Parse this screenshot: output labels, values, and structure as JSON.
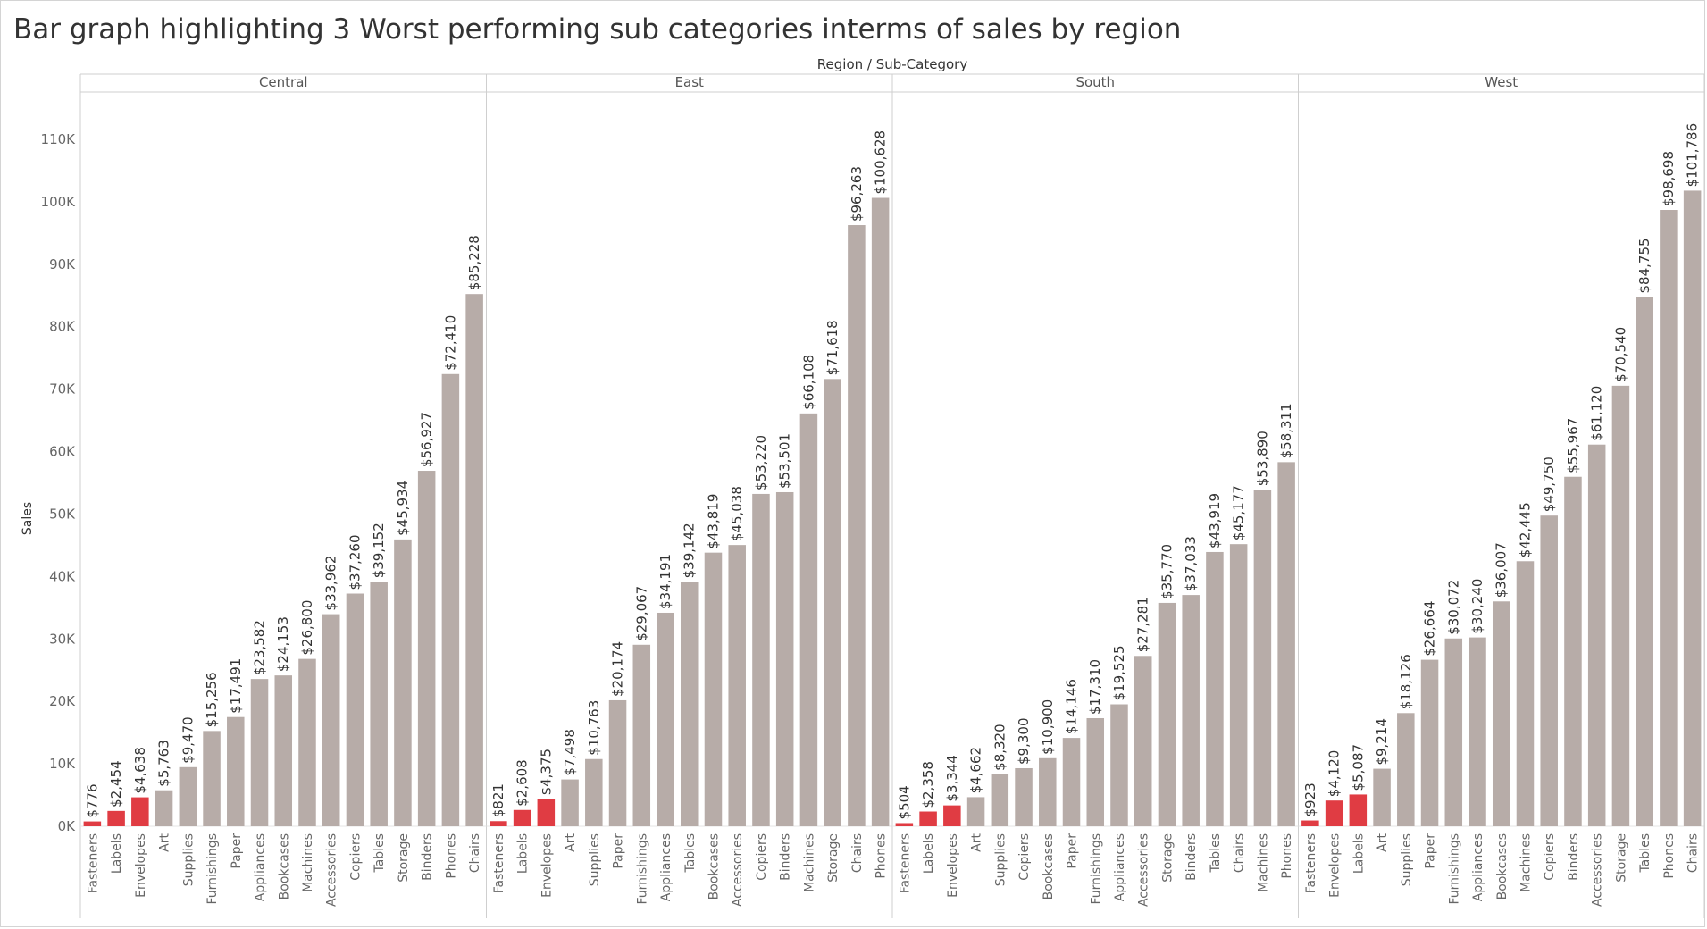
{
  "title": "Bar graph highlighting 3 Worst performing sub categories interms of sales by region",
  "chart_data": {
    "type": "bar",
    "title": "Bar graph highlighting 3 Worst performing sub categories interms of sales by region",
    "header_label": "Region / Sub-Category",
    "ylabel": "Sales",
    "ylim": [
      0,
      115000
    ],
    "yticks": [
      0,
      10000,
      20000,
      30000,
      40000,
      50000,
      60000,
      70000,
      80000,
      90000,
      100000,
      110000
    ],
    "ytick_labels": [
      "0K",
      "10K",
      "20K",
      "30K",
      "40K",
      "50K",
      "60K",
      "70K",
      "80K",
      "90K",
      "100K",
      "110K"
    ],
    "colors": {
      "highlight": "#e03c43",
      "normal": "#b7aca8"
    },
    "grid": false,
    "panels": [
      {
        "region": "Central",
        "categories": [
          "Fasteners",
          "Labels",
          "Envelopes",
          "Art",
          "Supplies",
          "Furnishings",
          "Paper",
          "Appliances",
          "Bookcases",
          "Machines",
          "Accessories",
          "Copiers",
          "Tables",
          "Storage",
          "Binders",
          "Phones",
          "Chairs"
        ],
        "values": [
          776,
          2454,
          4638,
          5763,
          9470,
          15256,
          17491,
          23582,
          24153,
          26800,
          33962,
          37260,
          39152,
          45934,
          56927,
          72410,
          85228
        ],
        "labels": [
          "$776",
          "$2,454",
          "$4,638",
          "$5,763",
          "$9,470",
          "$15,256",
          "$17,491",
          "$23,582",
          "$24,153",
          "$26,800",
          "$33,962",
          "$37,260",
          "$39,152",
          "$45,934",
          "$56,927",
          "$72,410",
          "$85,228"
        ],
        "highlighted": 3
      },
      {
        "region": "East",
        "categories": [
          "Fasteners",
          "Labels",
          "Envelopes",
          "Art",
          "Supplies",
          "Paper",
          "Furnishings",
          "Appliances",
          "Tables",
          "Bookcases",
          "Accessories",
          "Copiers",
          "Binders",
          "Machines",
          "Storage",
          "Chairs",
          "Phones"
        ],
        "values": [
          821,
          2608,
          4375,
          7498,
          10763,
          20174,
          29067,
          34191,
          39142,
          43819,
          45038,
          53220,
          53501,
          66108,
          71618,
          96263,
          100628
        ],
        "labels": [
          "$821",
          "$2,608",
          "$4,375",
          "$7,498",
          "$10,763",
          "$20,174",
          "$29,067",
          "$34,191",
          "$39,142",
          "$43,819",
          "$45,038",
          "$53,220",
          "$53,501",
          "$66,108",
          "$71,618",
          "$96,263",
          "$100,628"
        ],
        "highlighted": 3
      },
      {
        "region": "South",
        "categories": [
          "Fasteners",
          "Labels",
          "Envelopes",
          "Art",
          "Supplies",
          "Copiers",
          "Bookcases",
          "Paper",
          "Furnishings",
          "Appliances",
          "Accessories",
          "Storage",
          "Binders",
          "Tables",
          "Chairs",
          "Machines",
          "Phones"
        ],
        "values": [
          504,
          2358,
          3344,
          4662,
          8320,
          9300,
          10900,
          14146,
          17310,
          19525,
          27281,
          35770,
          37033,
          43919,
          45177,
          53890,
          58311
        ],
        "labels": [
          "$504",
          "$2,358",
          "$3,344",
          "$4,662",
          "$8,320",
          "$9,300",
          "$10,900",
          "$14,146",
          "$17,310",
          "$19,525",
          "$27,281",
          "$35,770",
          "$37,033",
          "$43,919",
          "$45,177",
          "$53,890",
          "$58,311"
        ],
        "highlighted": 3
      },
      {
        "region": "West",
        "categories": [
          "Fasteners",
          "Envelopes",
          "Labels",
          "Art",
          "Supplies",
          "Paper",
          "Furnishings",
          "Appliances",
          "Bookcases",
          "Machines",
          "Copiers",
          "Binders",
          "Accessories",
          "Storage",
          "Tables",
          "Phones",
          "Chairs"
        ],
        "values": [
          923,
          4120,
          5087,
          9214,
          18126,
          26664,
          30072,
          30240,
          36007,
          42445,
          49750,
          55967,
          61120,
          70540,
          84755,
          98698,
          101786
        ],
        "labels": [
          "$923",
          "$4,120",
          "$5,087",
          "$9,214",
          "$18,126",
          "$26,664",
          "$30,072",
          "$30,240",
          "$36,007",
          "$42,445",
          "$49,750",
          "$55,967",
          "$61,120",
          "$70,540",
          "$84,755",
          "$98,698",
          "$101,786"
        ],
        "highlighted": 3
      }
    ]
  }
}
